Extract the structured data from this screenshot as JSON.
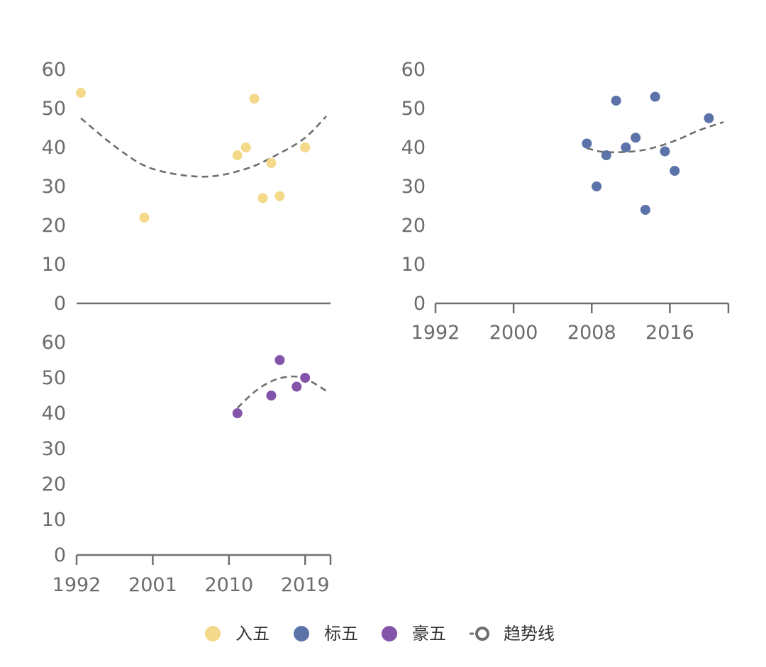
{
  "colors": {
    "ruwu": "#F5D98A",
    "biaowu": "#5B73A8",
    "haowu": "#8454AB",
    "trend": "#6E6E6E",
    "axis": "#707070",
    "text": "#6B6B6B"
  },
  "legend": [
    {
      "key": "ruwu",
      "label": "入五",
      "icon": "circle-marker"
    },
    {
      "key": "biaowu",
      "label": "标五",
      "icon": "circle-marker"
    },
    {
      "key": "haowu",
      "label": "豪五",
      "icon": "circle-marker"
    },
    {
      "key": "trend",
      "label": "趋势线",
      "icon": "dashed-line-marker"
    }
  ],
  "chart_data": [
    {
      "type": "scatter",
      "panel": "top-left",
      "series_key": "ruwu",
      "x_type": "year",
      "ylim": [
        0,
        60
      ],
      "yticks": [
        "0",
        "10",
        "20",
        "30",
        "40",
        "50",
        "60"
      ],
      "xlim": [
        1992,
        2022
      ],
      "show_x_ticks": false,
      "points": [
        {
          "x": 1992.5,
          "y": 54
        },
        {
          "x": 2000,
          "y": 22
        },
        {
          "x": 2011,
          "y": 38
        },
        {
          "x": 2012,
          "y": 40
        },
        {
          "x": 2013,
          "y": 52.5
        },
        {
          "x": 2014,
          "y": 27
        },
        {
          "x": 2015,
          "y": 36
        },
        {
          "x": 2016,
          "y": 27.5
        },
        {
          "x": 2019,
          "y": 40
        }
      ],
      "trend": [
        {
          "x": 1992.5,
          "y": 47.5
        },
        {
          "x": 1997,
          "y": 39.5
        },
        {
          "x": 2001,
          "y": 34.5
        },
        {
          "x": 2007,
          "y": 32.5
        },
        {
          "x": 2012,
          "y": 34.5
        },
        {
          "x": 2016,
          "y": 38.5
        },
        {
          "x": 2019,
          "y": 42.5
        },
        {
          "x": 2021.5,
          "y": 48
        }
      ]
    },
    {
      "type": "scatter",
      "panel": "top-right",
      "series_key": "biaowu",
      "x_type": "year",
      "ylim": [
        0,
        60
      ],
      "yticks": [
        "0",
        "10",
        "20",
        "30",
        "40",
        "50",
        "60"
      ],
      "xlim": [
        1992,
        2022
      ],
      "xticks": [
        "1992",
        "2000",
        "2008",
        "2016"
      ],
      "points": [
        {
          "x": 2007.5,
          "y": 41
        },
        {
          "x": 2008.5,
          "y": 30
        },
        {
          "x": 2009.5,
          "y": 38
        },
        {
          "x": 2010.5,
          "y": 52
        },
        {
          "x": 2011.5,
          "y": 40
        },
        {
          "x": 2012.5,
          "y": 42.5
        },
        {
          "x": 2013.5,
          "y": 24
        },
        {
          "x": 2014.5,
          "y": 53
        },
        {
          "x": 2015.5,
          "y": 39
        },
        {
          "x": 2016.5,
          "y": 34
        },
        {
          "x": 2020,
          "y": 47.5
        }
      ],
      "trend": [
        {
          "x": 2007.5,
          "y": 39.8
        },
        {
          "x": 2009,
          "y": 38.9
        },
        {
          "x": 2011,
          "y": 38.8
        },
        {
          "x": 2013,
          "y": 39.2
        },
        {
          "x": 2015,
          "y": 40.4
        },
        {
          "x": 2017,
          "y": 42.2
        },
        {
          "x": 2019,
          "y": 44.4
        },
        {
          "x": 2021.5,
          "y": 46.5
        }
      ]
    },
    {
      "type": "scatter",
      "panel": "bottom-left",
      "series_key": "haowu",
      "x_type": "year",
      "ylim": [
        0,
        60
      ],
      "yticks": [
        "0",
        "10",
        "20",
        "30",
        "40",
        "50",
        "60"
      ],
      "xlim": [
        1992,
        2022
      ],
      "xticks": [
        "1992",
        "2001",
        "2010",
        "2019"
      ],
      "points": [
        {
          "x": 2011,
          "y": 40
        },
        {
          "x": 2015,
          "y": 45
        },
        {
          "x": 2016,
          "y": 55
        },
        {
          "x": 2018,
          "y": 47.5
        },
        {
          "x": 2019,
          "y": 50
        }
      ],
      "trend": [
        {
          "x": 2011,
          "y": 41.5
        },
        {
          "x": 2013,
          "y": 46
        },
        {
          "x": 2015,
          "y": 49
        },
        {
          "x": 2017,
          "y": 50.3
        },
        {
          "x": 2019,
          "y": 49.8
        },
        {
          "x": 2021.5,
          "y": 46.3
        }
      ]
    }
  ]
}
